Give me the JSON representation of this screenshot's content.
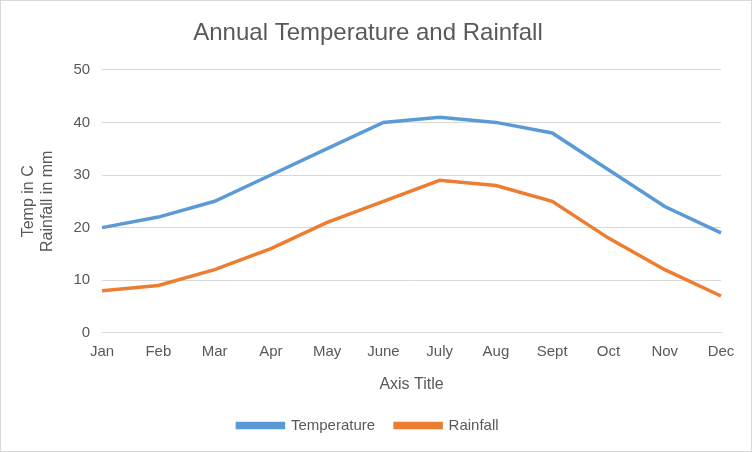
{
  "chart_data": {
    "type": "line",
    "title": "Annual Temperature and Rainfall",
    "xlabel": "Axis Title",
    "ylabel": [
      "Temp in C",
      "Rainfall in mm"
    ],
    "categories": [
      "Jan",
      "Feb",
      "Mar",
      "Apr",
      "May",
      "June",
      "July",
      "Aug",
      "Sept",
      "Oct",
      "Nov",
      "Dec"
    ],
    "series": [
      {
        "name": "Temperature",
        "color": "#5b9bd5",
        "values": [
          20,
          22,
          25,
          30,
          35,
          40,
          41,
          40,
          38,
          31,
          24,
          19
        ]
      },
      {
        "name": "Rainfall",
        "color": "#ed7d31",
        "values": [
          8,
          9,
          12,
          16,
          21,
          25,
          29,
          28,
          25,
          18,
          12,
          7
        ]
      }
    ],
    "ylim": [
      0,
      50
    ],
    "yticks": [
      0,
      10,
      20,
      30,
      40,
      50
    ],
    "grid": true,
    "legend": "bottom"
  }
}
